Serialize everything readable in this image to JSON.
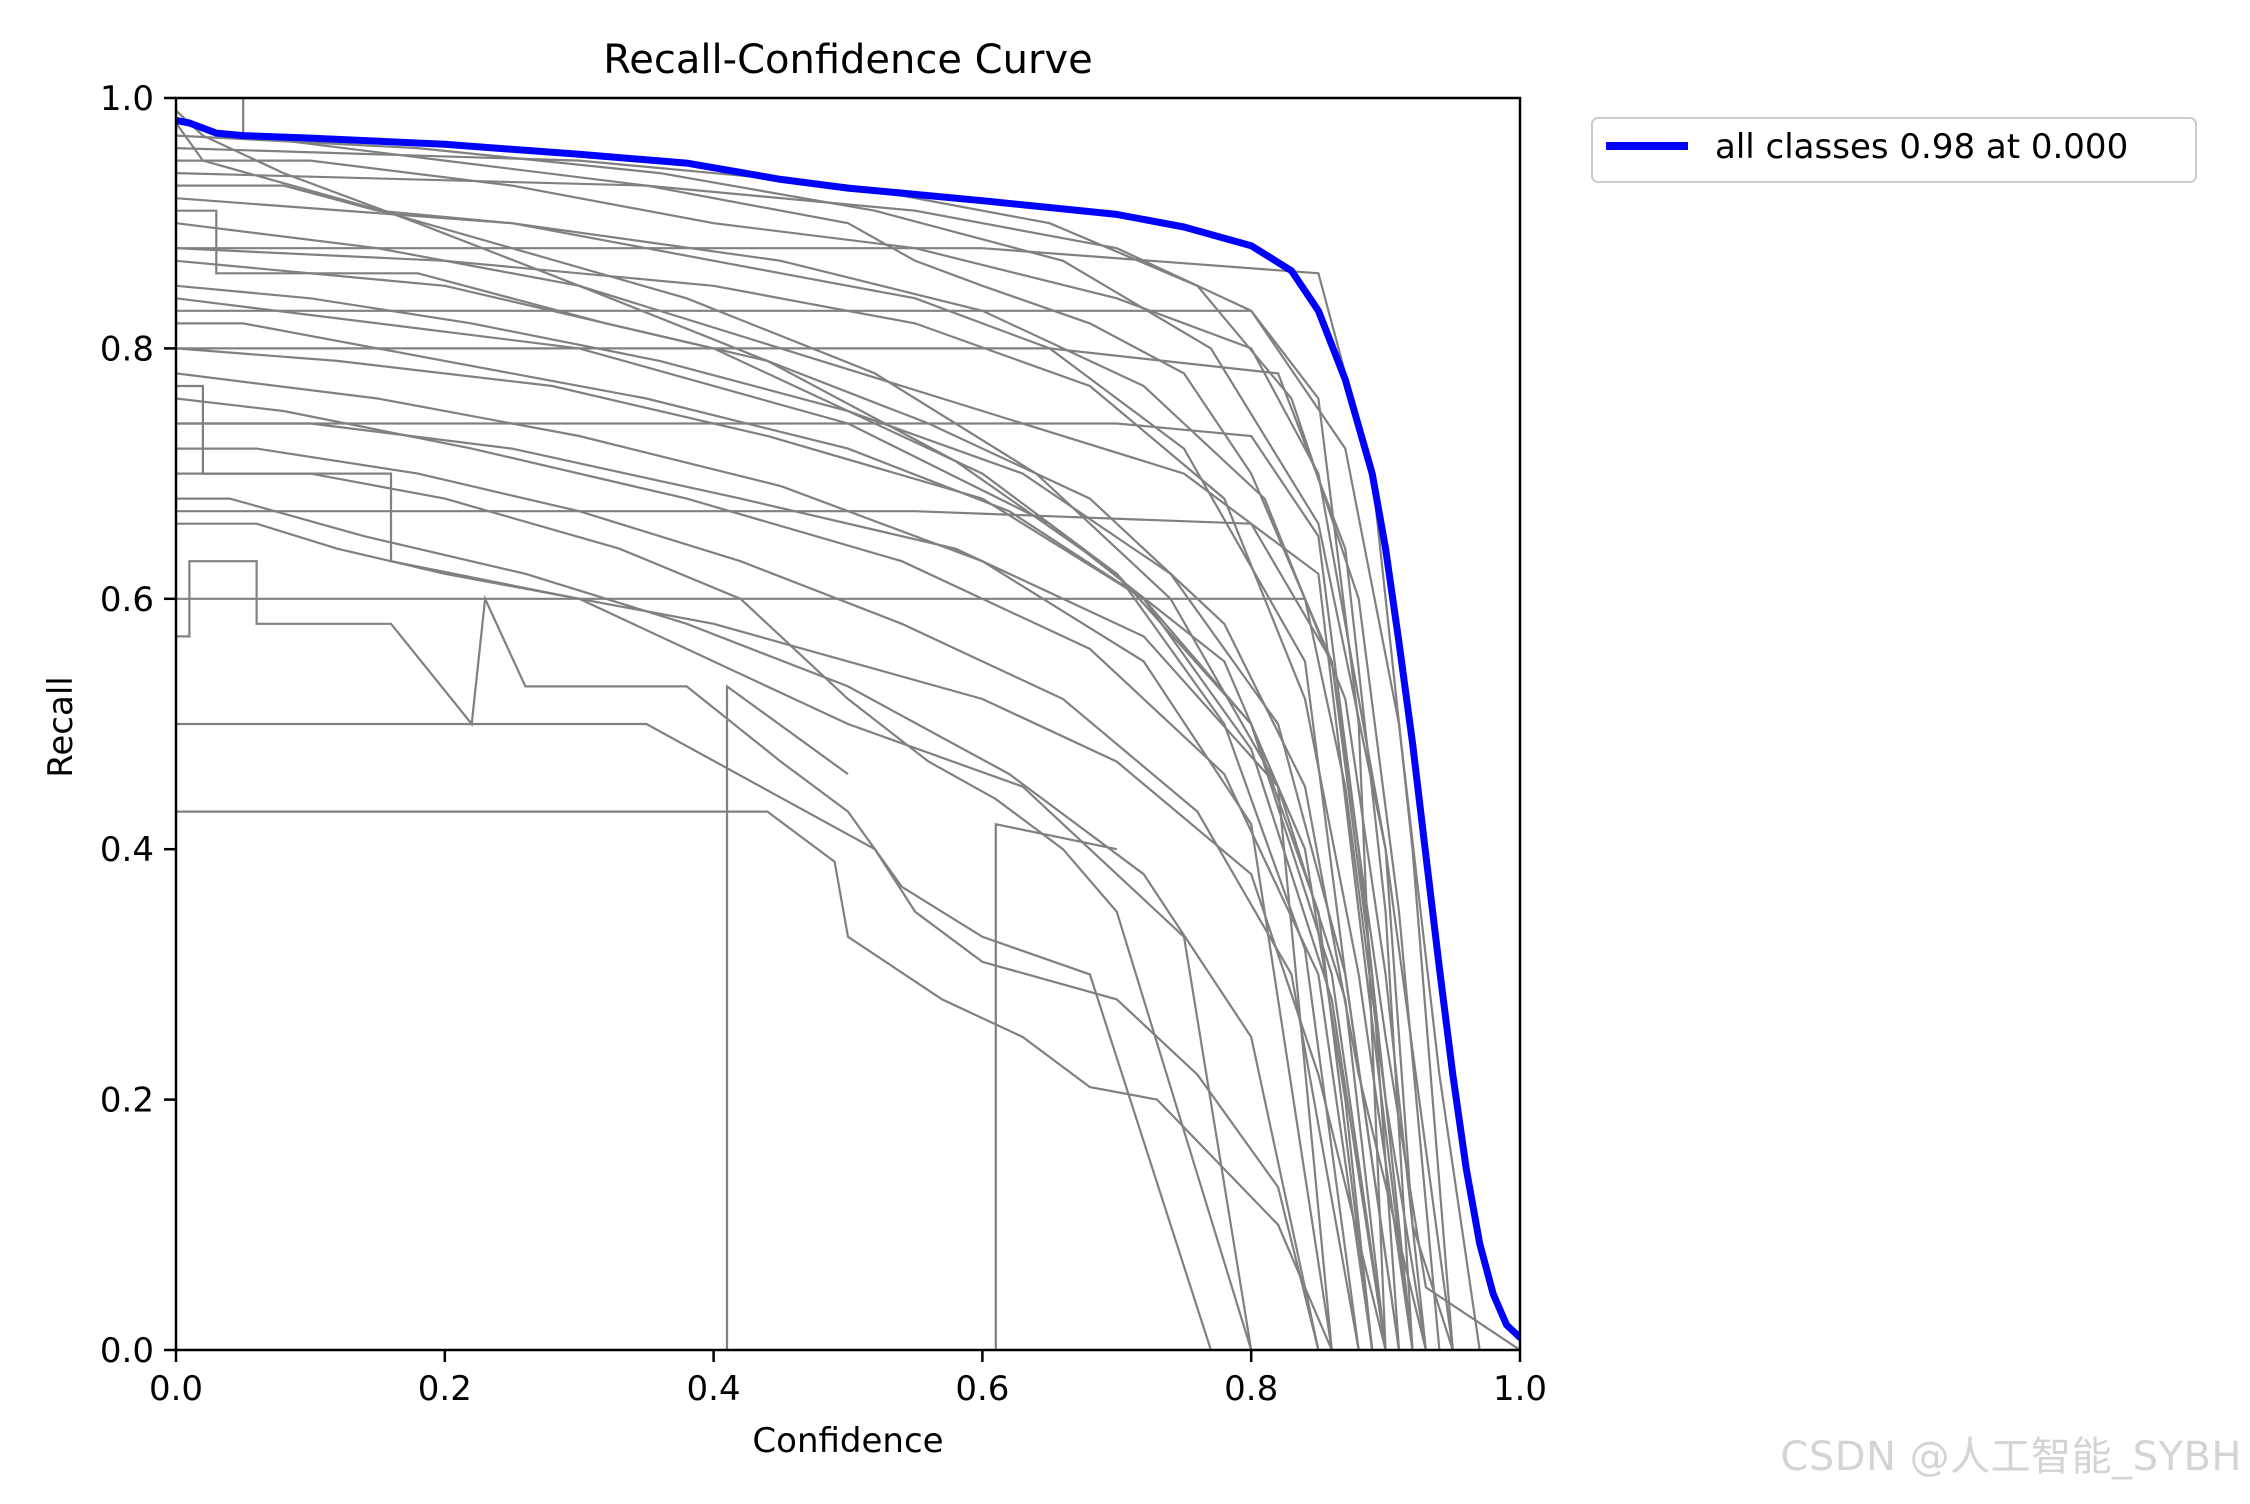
{
  "chart_data": {
    "type": "line",
    "title": "Recall-Confidence Curve",
    "xlabel": "Confidence",
    "ylabel": "Recall",
    "xlim": [
      0.0,
      1.0
    ],
    "ylim": [
      0.0,
      1.0
    ],
    "x_ticks": [
      0.0,
      0.2,
      0.4,
      0.6,
      0.8,
      1.0
    ],
    "y_ticks": [
      0.0,
      0.2,
      0.4,
      0.6,
      0.8,
      1.0
    ],
    "x_tick_labels": [
      "0.0",
      "0.2",
      "0.4",
      "0.6",
      "0.8",
      "1.0"
    ],
    "y_tick_labels": [
      "0.0",
      "0.2",
      "0.4",
      "0.6",
      "0.8",
      "1.0"
    ],
    "grid": false,
    "legend_position": "outside-top-right",
    "colors": {
      "summary": "#0000ff",
      "per_class": "#808080"
    },
    "summary_series": {
      "name": "all classes 0.98 at 0.000",
      "x": [
        0.0,
        0.01,
        0.03,
        0.05,
        0.1,
        0.2,
        0.3,
        0.38,
        0.45,
        0.5,
        0.6,
        0.7,
        0.75,
        0.8,
        0.83,
        0.85,
        0.87,
        0.89,
        0.9,
        0.91,
        0.92,
        0.93,
        0.94,
        0.95,
        0.96,
        0.97,
        0.98,
        0.99,
        1.0
      ],
      "y": [
        0.982,
        0.98,
        0.972,
        0.97,
        0.968,
        0.963,
        0.955,
        0.948,
        0.935,
        0.928,
        0.918,
        0.907,
        0.897,
        0.882,
        0.862,
        0.83,
        0.775,
        0.7,
        0.64,
        0.565,
        0.485,
        0.395,
        0.305,
        0.22,
        0.145,
        0.085,
        0.045,
        0.02,
        0.01
      ]
    },
    "per_class_series": [
      {
        "x": [
          0.0,
          0.05,
          0.05,
          0.2,
          0.35,
          0.5,
          0.55,
          0.6,
          0.68,
          0.75,
          0.8,
          0.86,
          0.88,
          0.9,
          0.93,
          1.0
        ],
        "y": [
          1.0,
          1.0,
          0.97,
          0.95,
          0.93,
          0.9,
          0.87,
          0.85,
          0.82,
          0.78,
          0.7,
          0.55,
          0.4,
          0.25,
          0.05,
          0.0
        ]
      },
      {
        "x": [
          0.0,
          0.1,
          0.25,
          0.4,
          0.55,
          0.7,
          0.8,
          0.85,
          0.9,
          0.92,
          0.95
        ],
        "y": [
          0.95,
          0.95,
          0.93,
          0.9,
          0.88,
          0.84,
          0.8,
          0.7,
          0.4,
          0.1,
          0.0
        ]
      },
      {
        "x": [
          0.0,
          0.15,
          0.3,
          0.45,
          0.6,
          0.75,
          0.85,
          0.88,
          0.92
        ],
        "y": [
          0.9,
          0.88,
          0.85,
          0.8,
          0.75,
          0.7,
          0.62,
          0.35,
          0.0
        ]
      },
      {
        "x": [
          0.0,
          0.2,
          0.4,
          0.6,
          0.7,
          0.8,
          0.86,
          0.9
        ],
        "y": [
          0.87,
          0.85,
          0.8,
          0.7,
          0.62,
          0.5,
          0.3,
          0.0
        ]
      },
      {
        "x": [
          0.0,
          0.3,
          0.5,
          0.65,
          0.78,
          0.84,
          0.87,
          0.89
        ],
        "y": [
          0.84,
          0.8,
          0.74,
          0.66,
          0.55,
          0.4,
          0.2,
          0.0
        ]
      },
      {
        "x": [
          0.0,
          0.02,
          0.02,
          0.1,
          0.2,
          0.33,
          0.42,
          0.5,
          0.56,
          0.61,
          0.66,
          0.7,
          0.8
        ],
        "y": [
          0.77,
          0.77,
          0.7,
          0.7,
          0.68,
          0.64,
          0.6,
          0.52,
          0.47,
          0.44,
          0.4,
          0.35,
          0.0
        ]
      },
      {
        "x": [
          0.0,
          0.16,
          0.16,
          0.3,
          0.46,
          0.5,
          0.63,
          0.75,
          0.8
        ],
        "y": [
          0.7,
          0.7,
          0.63,
          0.6,
          0.52,
          0.5,
          0.45,
          0.33,
          0.0
        ]
      },
      {
        "x": [
          0.0,
          0.01,
          0.01,
          0.06,
          0.06,
          0.16,
          0.22,
          0.23,
          0.26,
          0.38,
          0.45,
          0.5,
          0.54,
          0.6,
          0.68,
          0.77
        ],
        "y": [
          0.57,
          0.57,
          0.63,
          0.63,
          0.58,
          0.58,
          0.5,
          0.6,
          0.53,
          0.53,
          0.47,
          0.43,
          0.37,
          0.33,
          0.3,
          0.0
        ]
      },
      {
        "x": [
          0.0,
          0.01,
          0.01,
          0.3,
          0.44,
          0.49,
          0.5,
          0.57,
          0.63,
          0.68,
          0.73,
          0.82,
          0.86
        ],
        "y": [
          0.43,
          0.43,
          0.43,
          0.43,
          0.43,
          0.39,
          0.33,
          0.28,
          0.25,
          0.21,
          0.2,
          0.1,
          0.0
        ]
      },
      {
        "x": [
          0.0,
          0.01,
          0.15,
          0.35,
          0.52,
          0.55,
          0.6,
          0.7,
          0.76,
          0.82,
          0.85
        ],
        "y": [
          0.5,
          0.5,
          0.5,
          0.5,
          0.4,
          0.35,
          0.31,
          0.28,
          0.22,
          0.13,
          0.0
        ]
      },
      {
        "x": [
          0.41,
          0.41,
          0.41,
          0.5
        ],
        "y": [
          0.0,
          0.46,
          0.53,
          0.46
        ]
      },
      {
        "x": [
          0.61,
          0.61,
          0.61,
          0.7
        ],
        "y": [
          0.0,
          0.31,
          0.42,
          0.4
        ]
      },
      {
        "x": [
          0.0,
          0.08,
          0.15,
          0.25,
          0.35,
          0.45,
          0.55,
          0.65,
          0.75,
          0.84,
          0.87,
          0.91
        ],
        "y": [
          0.93,
          0.93,
          0.91,
          0.9,
          0.88,
          0.86,
          0.84,
          0.8,
          0.72,
          0.55,
          0.3,
          0.0
        ]
      },
      {
        "x": [
          0.0,
          0.05,
          0.2,
          0.35,
          0.5,
          0.62,
          0.72,
          0.8,
          0.85,
          0.89
        ],
        "y": [
          0.82,
          0.82,
          0.79,
          0.76,
          0.72,
          0.67,
          0.6,
          0.5,
          0.35,
          0.0
        ]
      },
      {
        "x": [
          0.0,
          0.1,
          0.25,
          0.42,
          0.58,
          0.72,
          0.82,
          0.87,
          0.9
        ],
        "y": [
          0.74,
          0.74,
          0.72,
          0.68,
          0.64,
          0.57,
          0.45,
          0.28,
          0.0
        ]
      },
      {
        "x": [
          0.0,
          0.06,
          0.12,
          0.2,
          0.3,
          0.4,
          0.5,
          0.6,
          0.7,
          0.8,
          0.85,
          0.9
        ],
        "y": [
          0.66,
          0.66,
          0.64,
          0.62,
          0.6,
          0.58,
          0.55,
          0.52,
          0.47,
          0.38,
          0.22,
          0.0
        ]
      },
      {
        "x": [
          0.0,
          0.02,
          0.12,
          0.25,
          0.38,
          0.52,
          0.64,
          0.74,
          0.82,
          0.86
        ],
        "y": [
          0.98,
          0.95,
          0.92,
          0.88,
          0.84,
          0.78,
          0.7,
          0.6,
          0.45,
          0.0
        ]
      },
      {
        "x": [
          0.0,
          0.03,
          0.03,
          0.18,
          0.32,
          0.44,
          0.56,
          0.68,
          0.78,
          0.84,
          0.88,
          0.93
        ],
        "y": [
          0.91,
          0.91,
          0.86,
          0.86,
          0.82,
          0.79,
          0.74,
          0.68,
          0.58,
          0.45,
          0.22,
          0.0
        ]
      },
      {
        "x": [
          0.0,
          0.3,
          0.5,
          0.65,
          0.76,
          0.83,
          0.88,
          0.91,
          0.94
        ],
        "y": [
          0.96,
          0.95,
          0.93,
          0.9,
          0.85,
          0.76,
          0.6,
          0.35,
          0.0
        ]
      },
      {
        "x": [
          0.0,
          0.2,
          0.4,
          0.55,
          0.68,
          0.78,
          0.84,
          0.88,
          0.92
        ],
        "y": [
          0.88,
          0.87,
          0.85,
          0.82,
          0.77,
          0.68,
          0.52,
          0.3,
          0.0
        ]
      },
      {
        "x": [
          0.0,
          0.12,
          0.28,
          0.44,
          0.6,
          0.72,
          0.8,
          0.86,
          0.9
        ],
        "y": [
          0.8,
          0.79,
          0.77,
          0.73,
          0.68,
          0.6,
          0.48,
          0.28,
          0.0
        ]
      },
      {
        "x": [
          0.0,
          0.06,
          0.18,
          0.3,
          0.42,
          0.54,
          0.66,
          0.76,
          0.83,
          0.88
        ],
        "y": [
          0.72,
          0.72,
          0.7,
          0.67,
          0.63,
          0.58,
          0.52,
          0.43,
          0.3,
          0.0
        ]
      },
      {
        "x": [
          0.0,
          0.04,
          0.14,
          0.26,
          0.38,
          0.5,
          0.62,
          0.72,
          0.8,
          0.85
        ],
        "y": [
          0.68,
          0.68,
          0.65,
          0.62,
          0.58,
          0.53,
          0.46,
          0.38,
          0.25,
          0.0
        ]
      },
      {
        "x": [
          0.0,
          0.02,
          0.08,
          0.18,
          0.3,
          0.44,
          0.58,
          0.7,
          0.78,
          0.84,
          0.88
        ],
        "y": [
          0.99,
          0.97,
          0.94,
          0.9,
          0.85,
          0.79,
          0.71,
          0.62,
          0.5,
          0.32,
          0.0
        ]
      },
      {
        "x": [
          0.0,
          0.1,
          0.22,
          0.36,
          0.5,
          0.63,
          0.74,
          0.82,
          0.87,
          0.91
        ],
        "y": [
          0.85,
          0.84,
          0.82,
          0.79,
          0.75,
          0.7,
          0.62,
          0.5,
          0.3,
          0.0
        ]
      },
      {
        "x": [
          0.0,
          0.15,
          0.3,
          0.45,
          0.6,
          0.72,
          0.8,
          0.86
        ],
        "y": [
          0.78,
          0.76,
          0.73,
          0.69,
          0.63,
          0.55,
          0.42,
          0.0
        ]
      },
      {
        "x": [
          0.0,
          0.25,
          0.45,
          0.6,
          0.72,
          0.81,
          0.87,
          0.9,
          0.93
        ],
        "y": [
          0.92,
          0.9,
          0.87,
          0.83,
          0.77,
          0.68,
          0.52,
          0.3,
          0.0
        ]
      },
      {
        "x": [
          0.0,
          0.18,
          0.36,
          0.52,
          0.66,
          0.77,
          0.85,
          0.9,
          0.95
        ],
        "y": [
          0.97,
          0.96,
          0.94,
          0.91,
          0.87,
          0.8,
          0.66,
          0.4,
          0.0
        ]
      },
      {
        "x": [
          0.0,
          0.35,
          0.55,
          0.7,
          0.8,
          0.87,
          0.91,
          0.94,
          0.97
        ],
        "y": [
          0.94,
          0.93,
          0.91,
          0.88,
          0.83,
          0.72,
          0.5,
          0.22,
          0.0
        ]
      },
      {
        "x": [
          0.0,
          0.08,
          0.22,
          0.38,
          0.54,
          0.68,
          0.78,
          0.85,
          0.89
        ],
        "y": [
          0.76,
          0.75,
          0.72,
          0.68,
          0.63,
          0.56,
          0.46,
          0.3,
          0.0
        ]
      },
      {
        "x": [
          0.0,
          0.01,
          0.01,
          0.2,
          0.5,
          0.7,
          0.8,
          0.85,
          0.88,
          0.92
        ],
        "y": [
          0.74,
          0.74,
          0.74,
          0.74,
          0.74,
          0.74,
          0.73,
          0.65,
          0.4,
          0.0
        ]
      },
      {
        "x": [
          0.0,
          0.01,
          0.3,
          0.6,
          0.8,
          0.85,
          0.88,
          0.9
        ],
        "y": [
          0.83,
          0.83,
          0.83,
          0.83,
          0.83,
          0.76,
          0.5,
          0.0
        ]
      },
      {
        "x": [
          0.0,
          0.05,
          0.4,
          0.7,
          0.84,
          0.87,
          0.9,
          0.93
        ],
        "y": [
          0.6,
          0.6,
          0.6,
          0.6,
          0.6,
          0.45,
          0.2,
          0.0
        ]
      },
      {
        "x": [
          0.0,
          0.02,
          0.25,
          0.55,
          0.8,
          0.86,
          0.89,
          0.91
        ],
        "y": [
          0.67,
          0.67,
          0.67,
          0.67,
          0.66,
          0.55,
          0.3,
          0.0
        ]
      },
      {
        "x": [
          0.0,
          0.03,
          0.35,
          0.65,
          0.82,
          0.87,
          0.9,
          0.92
        ],
        "y": [
          0.8,
          0.8,
          0.8,
          0.8,
          0.78,
          0.64,
          0.35,
          0.0
        ]
      },
      {
        "x": [
          0.0,
          0.02,
          0.3,
          0.6,
          0.85,
          0.89,
          0.92,
          0.95
        ],
        "y": [
          0.88,
          0.88,
          0.88,
          0.88,
          0.86,
          0.7,
          0.4,
          0.0
        ]
      }
    ]
  }
}
